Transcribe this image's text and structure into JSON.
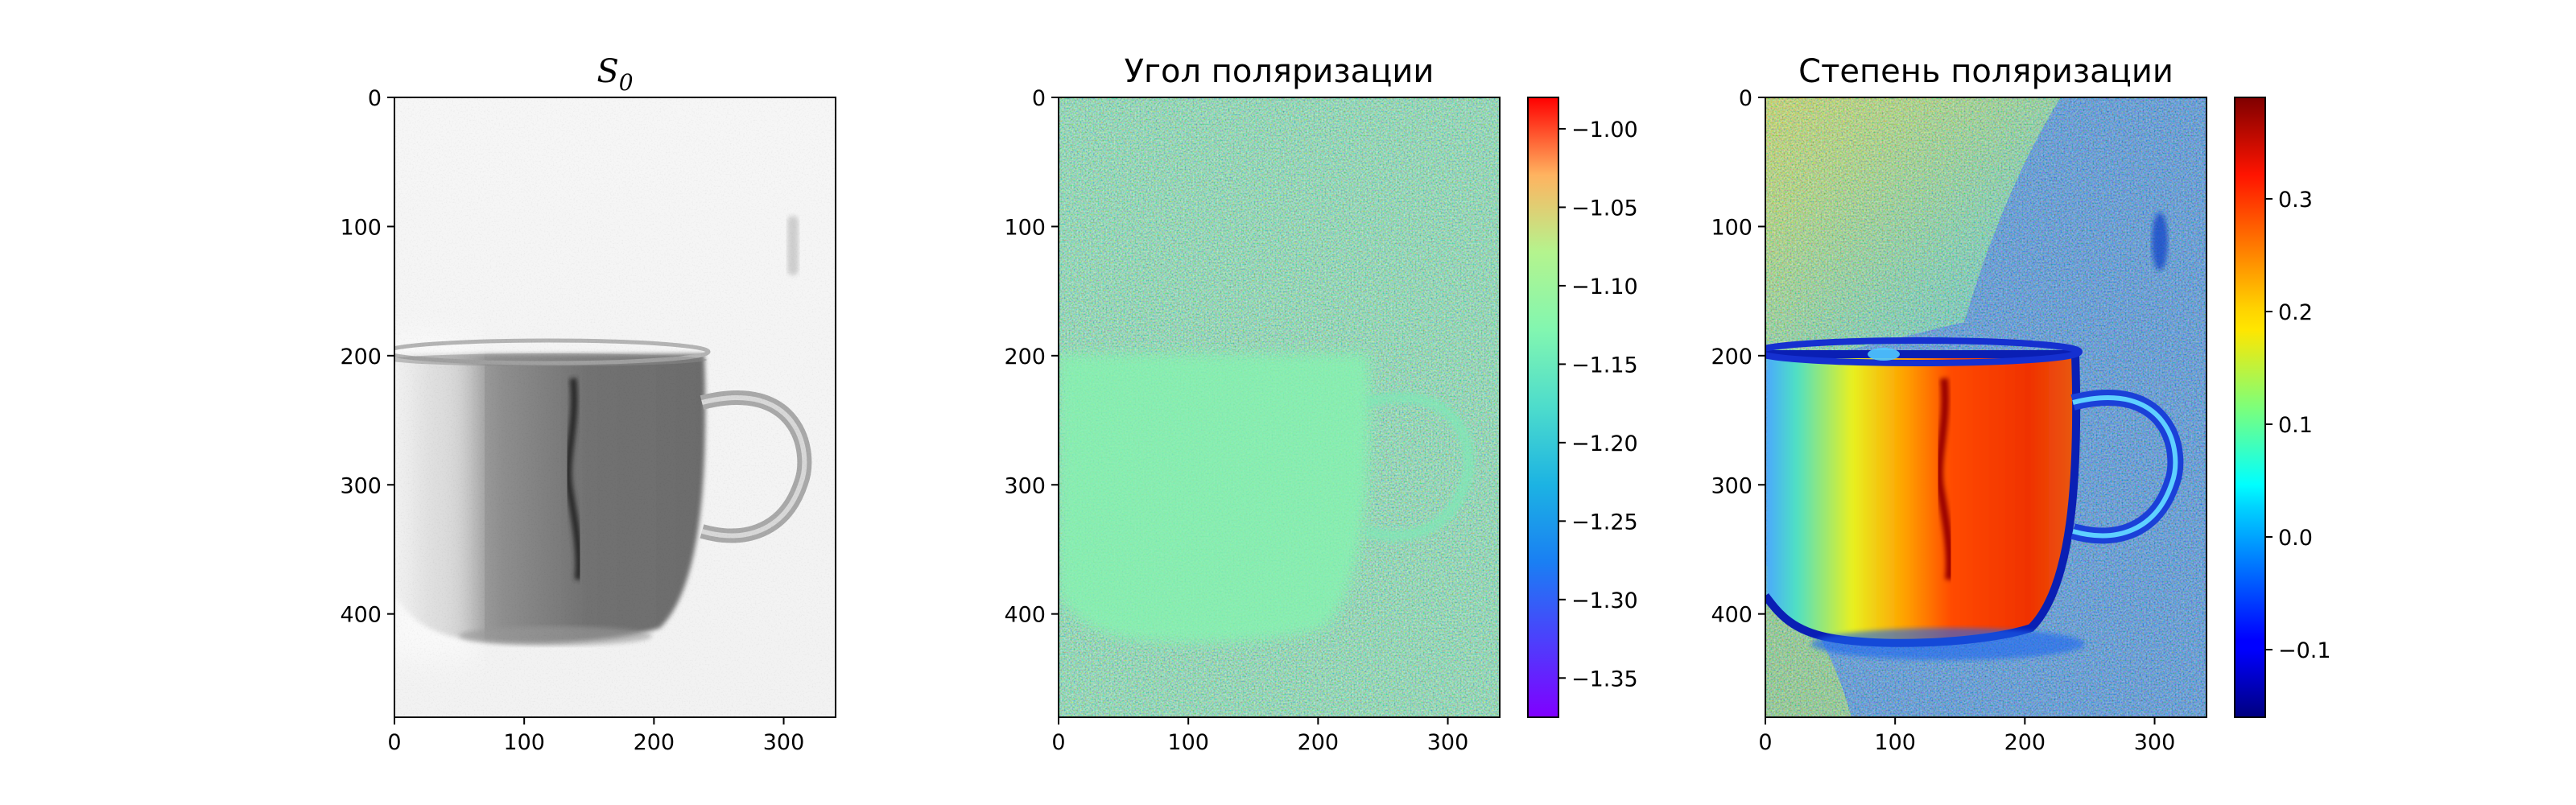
{
  "figure": {
    "background": "#ffffff"
  },
  "chart_data": [
    {
      "type": "heatmap",
      "title_base": "S",
      "title_sub": "0",
      "colormap": "gray_r",
      "xlim": [
        0,
        340
      ],
      "ylim": [
        480,
        0
      ],
      "xticks": [
        0,
        100,
        200,
        300
      ],
      "yticks": [
        0,
        100,
        200,
        300,
        400
      ],
      "xtick_labels": [
        "0",
        "100",
        "200",
        "300"
      ],
      "ytick_labels": [
        "0",
        "100",
        "200",
        "300",
        "400"
      ],
      "grid": false,
      "colorbar": false
    },
    {
      "type": "heatmap",
      "title": "Угол поляризации",
      "colormap": "rainbow",
      "xlim": [
        0,
        340
      ],
      "ylim": [
        480,
        0
      ],
      "xticks": [
        0,
        100,
        200,
        300
      ],
      "yticks": [
        0,
        100,
        200,
        300,
        400
      ],
      "xtick_labels": [
        "0",
        "100",
        "200",
        "300"
      ],
      "ytick_labels": [
        "0",
        "100",
        "200",
        "300",
        "400"
      ],
      "grid": false,
      "colorbar": true,
      "colorbar_range": [
        -1.375,
        -0.98
      ],
      "colorbar_ticks": [
        -1.0,
        -1.05,
        -1.1,
        -1.15,
        -1.2,
        -1.25,
        -1.3,
        -1.35
      ],
      "colorbar_tick_labels": [
        "−1.00",
        "−1.05",
        "−1.10",
        "−1.15",
        "−1.20",
        "−1.25",
        "−1.30",
        "−1.35"
      ]
    },
    {
      "type": "heatmap",
      "title": "Степень поляризации",
      "colormap": "jet",
      "xlim": [
        0,
        340
      ],
      "ylim": [
        480,
        0
      ],
      "xticks": [
        0,
        100,
        200,
        300
      ],
      "yticks": [
        0,
        100,
        200,
        300,
        400
      ],
      "xtick_labels": [
        "0",
        "100",
        "200",
        "300"
      ],
      "ytick_labels": [
        "0",
        "100",
        "200",
        "300",
        "400"
      ],
      "grid": false,
      "colorbar": true,
      "colorbar_range": [
        -0.16,
        0.39
      ],
      "colorbar_ticks": [
        0.3,
        0.2,
        0.1,
        0.0,
        -0.1
      ],
      "colorbar_tick_labels": [
        "0.3",
        "0.2",
        "0.1",
        "0.0",
        "−0.1"
      ]
    }
  ]
}
